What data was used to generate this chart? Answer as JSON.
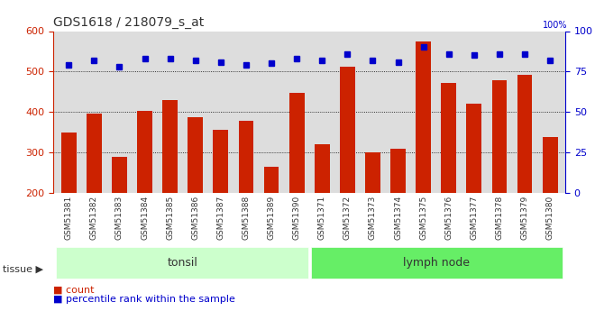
{
  "title": "GDS1618 / 218079_s_at",
  "samples": [
    "GSM51381",
    "GSM51382",
    "GSM51383",
    "GSM51384",
    "GSM51385",
    "GSM51386",
    "GSM51387",
    "GSM51388",
    "GSM51389",
    "GSM51390",
    "GSM51371",
    "GSM51372",
    "GSM51373",
    "GSM51374",
    "GSM51375",
    "GSM51376",
    "GSM51377",
    "GSM51378",
    "GSM51379",
    "GSM51380"
  ],
  "counts": [
    350,
    397,
    290,
    403,
    430,
    388,
    355,
    378,
    265,
    447,
    320,
    512,
    300,
    310,
    575,
    472,
    420,
    478,
    492,
    337
  ],
  "percentiles": [
    79,
    82,
    78,
    83,
    83,
    82,
    81,
    79,
    80,
    83,
    82,
    86,
    82,
    81,
    90,
    86,
    85,
    86,
    86,
    82
  ],
  "tonsil_count": 10,
  "lymph_count": 10,
  "tissue_label": "tissue",
  "tonsil_label": "tonsil",
  "lymph_label": "lymph node",
  "count_label": "count",
  "percentile_label": "percentile rank within the sample",
  "ylim_left": [
    200,
    600
  ],
  "ylim_right": [
    0,
    100
  ],
  "yticks_left": [
    200,
    300,
    400,
    500,
    600
  ],
  "yticks_right": [
    0,
    25,
    50,
    75,
    100
  ],
  "bar_color": "#cc2200",
  "dot_color": "#0000cc",
  "tonsil_bg": "#ccffcc",
  "lymph_bg": "#66ee66",
  "axis_bg": "#dddddd",
  "title_color": "#333333",
  "left_axis_color": "#cc2200",
  "right_axis_color": "#0000cc",
  "grid_color": "#000000"
}
